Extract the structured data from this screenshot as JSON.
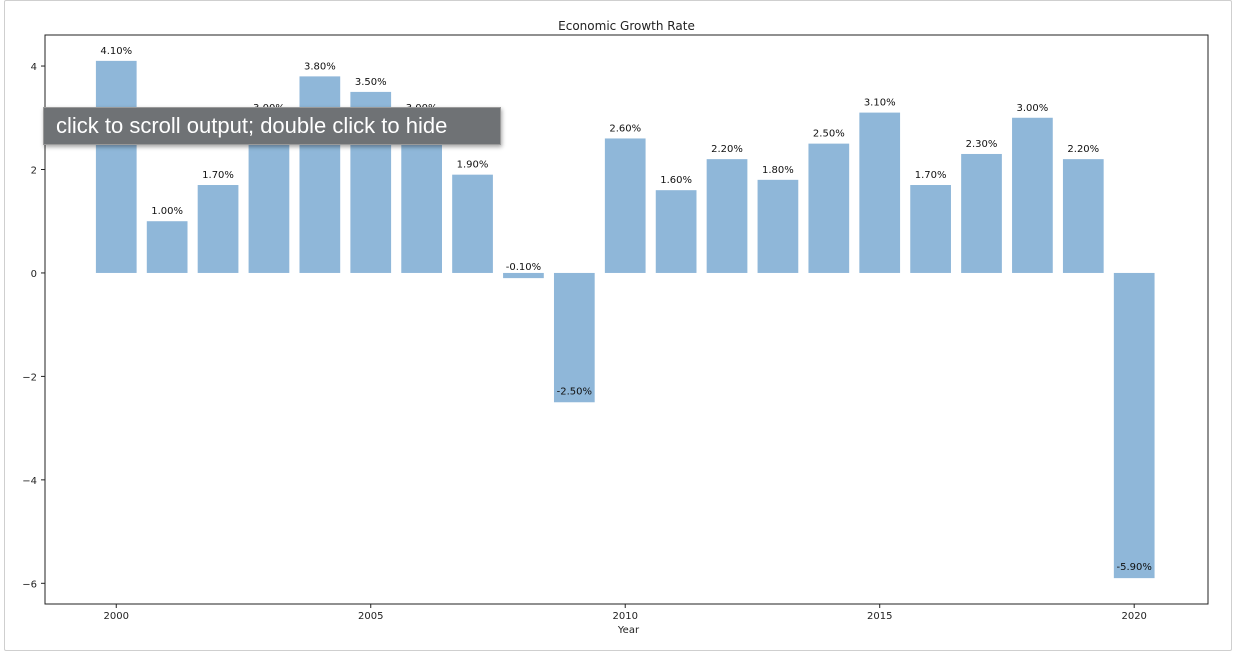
{
  "chart_data": {
    "type": "bar",
    "title": "Economic Growth Rate",
    "xlabel": "Year",
    "ylabel": "",
    "x": [
      2000,
      2001,
      2002,
      2003,
      2004,
      2005,
      2006,
      2007,
      2008,
      2009,
      2010,
      2011,
      2012,
      2013,
      2014,
      2015,
      2016,
      2017,
      2018,
      2019,
      2020
    ],
    "values": [
      4.1,
      1.0,
      1.7,
      3.0,
      3.8,
      3.5,
      3.0,
      1.9,
      -0.1,
      -2.5,
      2.6,
      1.6,
      2.2,
      1.8,
      2.5,
      3.1,
      1.7,
      2.3,
      3.0,
      2.2,
      -5.9
    ],
    "bar_labels": [
      "4.10%",
      "1.00%",
      "1.70%",
      "3.00%",
      "3.80%",
      "3.50%",
      "3.00%",
      "1.90%",
      "-0.10%",
      "-2.50%",
      "2.60%",
      "1.60%",
      "2.20%",
      "1.80%",
      "2.50%",
      "3.10%",
      "1.70%",
      "2.30%",
      "3.00%",
      "2.20%",
      "-5.90%"
    ],
    "xticks": [
      2000,
      2005,
      2010,
      2015,
      2020
    ],
    "yticks": [
      -6,
      -4,
      -2,
      0,
      2,
      4
    ],
    "ytick_labels": [
      "−6",
      "−4",
      "−2",
      "0",
      "2",
      "4"
    ],
    "ylim": [
      -6.4,
      4.6
    ],
    "xlim": [
      1998.6,
      2021.45
    ],
    "bar_color": "#8fb7d9",
    "grid": false,
    "legend": "none"
  },
  "overlay": {
    "tooltip_text": "click to scroll output; double click to hide"
  }
}
